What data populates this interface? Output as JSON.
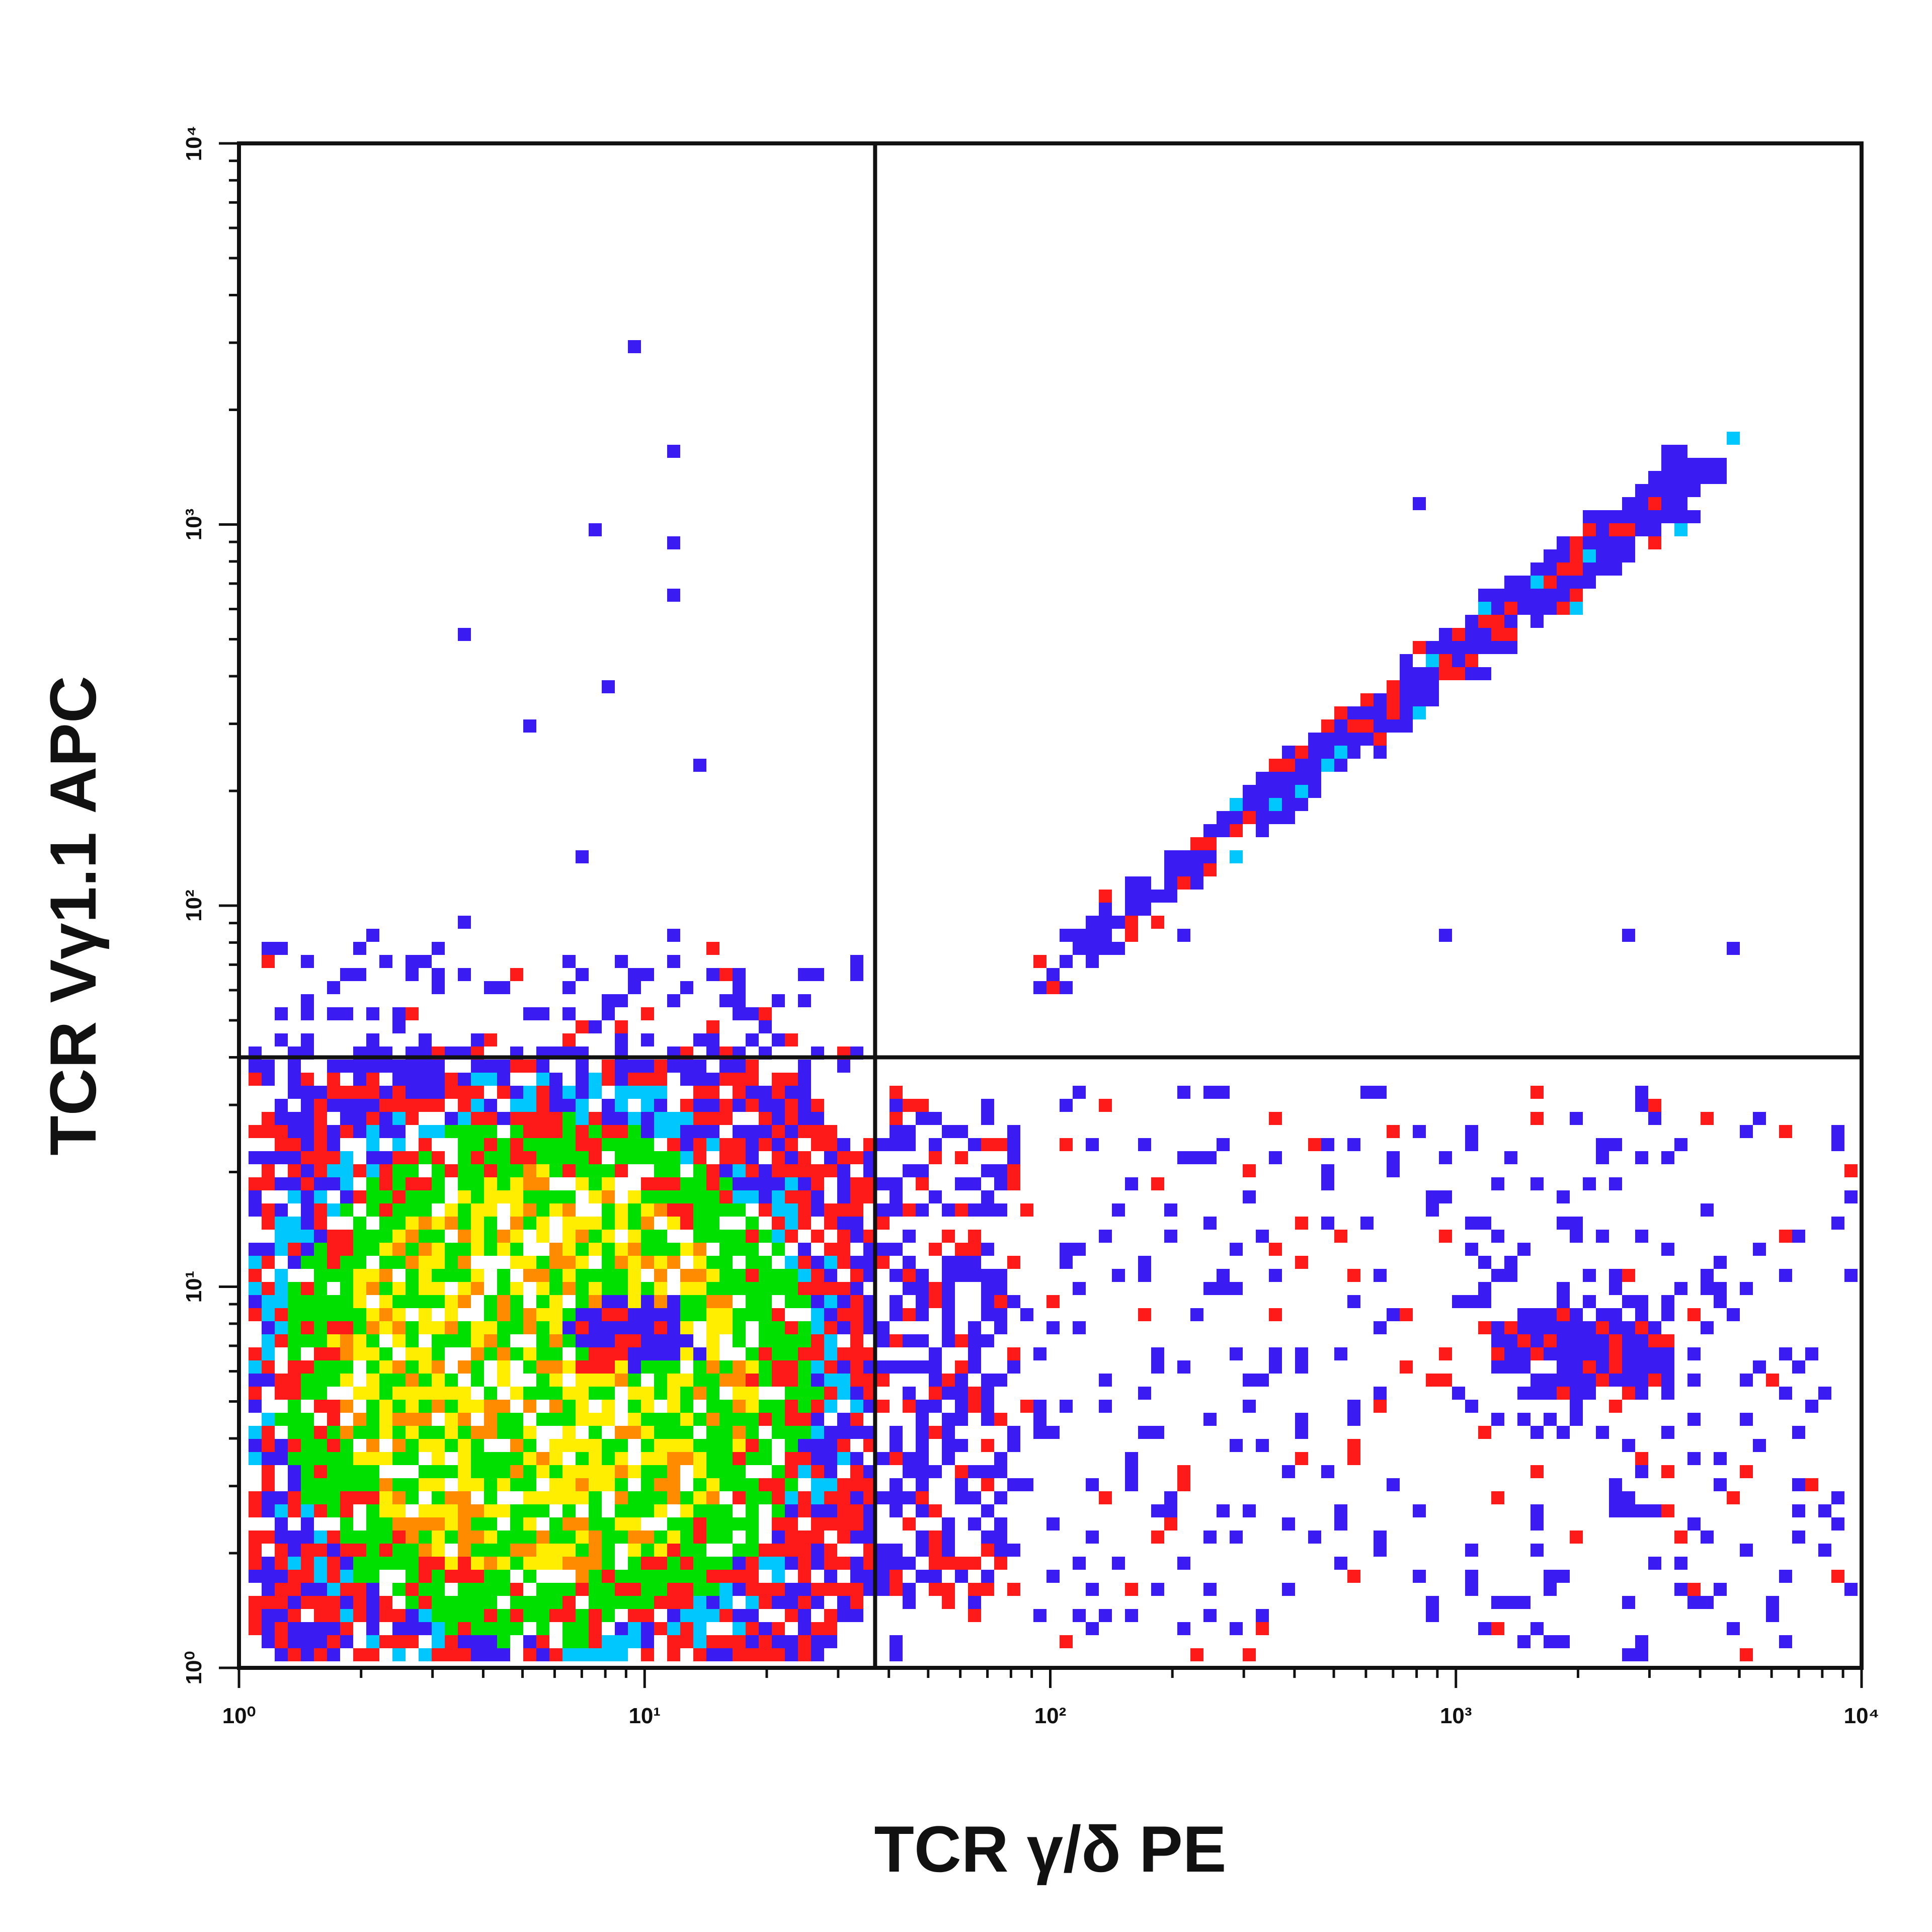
{
  "chart_data": {
    "type": "scatter",
    "title": "",
    "xlabel": "TCR γ/δ PE",
    "ylabel": "TCR Vγ1.1 APC",
    "x_scale": "log",
    "y_scale": "log",
    "xlim": [
      1,
      10000
    ],
    "ylim": [
      1,
      10000
    ],
    "grid": false,
    "legend": "none",
    "x_ticks": [
      {
        "value": 1,
        "label": "10⁰"
      },
      {
        "value": 10,
        "label": "10¹"
      },
      {
        "value": 100,
        "label": "10²"
      },
      {
        "value": 1000,
        "label": "10³"
      },
      {
        "value": 10000,
        "label": "10⁴"
      }
    ],
    "y_ticks": [
      {
        "value": 1,
        "label": "10⁰"
      },
      {
        "value": 10,
        "label": "10¹"
      },
      {
        "value": 100,
        "label": "10²"
      },
      {
        "value": 1000,
        "label": "10³"
      },
      {
        "value": 10000,
        "label": "10⁴"
      }
    ],
    "quadrant_gate": {
      "x": 37,
      "y": 40
    },
    "density_colors": {
      "low": "#3a1cf2",
      "low_mid": "#00c8ff",
      "mid": "#ff1a1a",
      "mid_high": "#00e000",
      "high": "#ffee00",
      "peak": "#ff8c00"
    },
    "populations": [
      {
        "region": "double-negative cluster",
        "x_range": [
          1,
          30
        ],
        "y_range": [
          1,
          35
        ],
        "density": "very high"
      },
      {
        "region": "double-positive diagonal",
        "x_range": [
          80,
          4000
        ],
        "y_range": [
          60,
          1500
        ],
        "density": "medium"
      },
      {
        "region": "TCR γ/δ+ Vγ1.1- cells",
        "x_range": [
          40,
          9000
        ],
        "y_range": [
          1,
          35
        ],
        "density": "low"
      },
      {
        "region": "Vγ1.1+ TCR γ/δ- cells",
        "x_range": [
          1,
          35
        ],
        "y_range": [
          45,
          3000
        ],
        "density": "sparse"
      }
    ],
    "outliers": [
      [
        9,
        3000
      ],
      [
        11,
        1650
      ],
      [
        7.5,
        1000
      ],
      [
        11,
        950
      ],
      [
        11,
        680
      ],
      [
        3.5,
        530
      ],
      [
        8,
        400
      ],
      [
        5,
        320
      ],
      [
        13,
        240
      ],
      [
        7,
        140
      ],
      [
        2,
        90
      ],
      [
        3.5,
        95
      ],
      [
        11,
        85
      ],
      [
        2.2,
        75
      ],
      [
        7,
        70
      ],
      [
        15,
        60
      ],
      [
        800,
        1200
      ],
      [
        3500,
        1300
      ],
      [
        200,
        90
      ],
      [
        900,
        85
      ],
      [
        2500,
        85
      ],
      [
        4500,
        80
      ]
    ]
  }
}
